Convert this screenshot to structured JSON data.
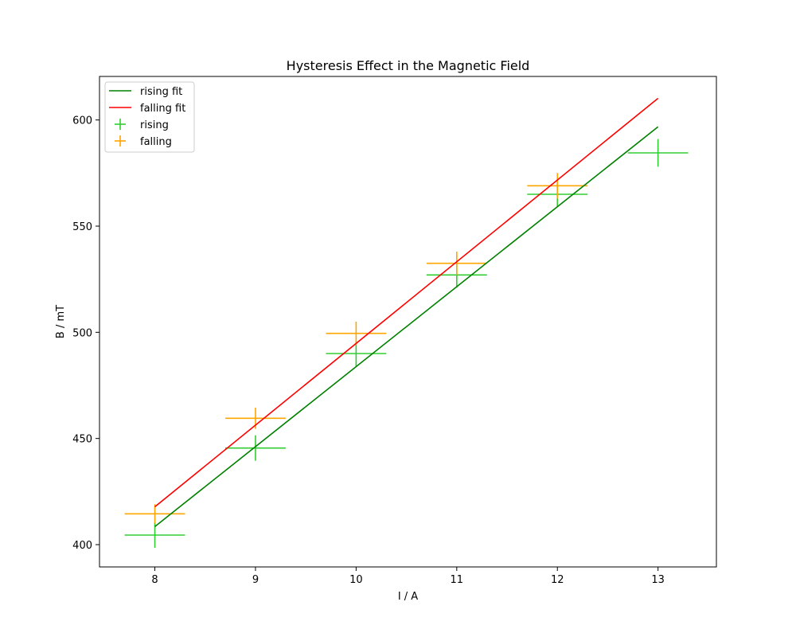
{
  "chart_data": {
    "type": "scatter",
    "title": "Hysteresis Effect in the Magnetic Field",
    "xlabel": "I / A",
    "ylabel": "B / mT",
    "xlim": [
      7.45,
      13.58
    ],
    "ylim": [
      389.5,
      620.5
    ],
    "x_ticks": [
      8,
      9,
      10,
      11,
      12,
      13
    ],
    "y_ticks": [
      400,
      450,
      500,
      550,
      600
    ],
    "grid": false,
    "legend_position": "upper left",
    "fits": [
      {
        "name": "rising fit",
        "color": "#008000",
        "x": [
          8,
          13
        ],
        "y": [
          408.5,
          596.8
        ]
      },
      {
        "name": "falling fit",
        "color": "#ff0000",
        "x": [
          8,
          13
        ],
        "y": [
          417.8,
          610.2
        ]
      }
    ],
    "series": [
      {
        "name": "rising",
        "color": "#32cd32",
        "points": [
          {
            "x": 8,
            "y": 404.5,
            "xerr": 0.3,
            "yerr": 6
          },
          {
            "x": 9,
            "y": 445.5,
            "xerr": 0.3,
            "yerr": 6
          },
          {
            "x": 10,
            "y": 490.0,
            "xerr": 0.3,
            "yerr": 6
          },
          {
            "x": 11,
            "y": 527.0,
            "xerr": 0.3,
            "yerr": 6
          },
          {
            "x": 12,
            "y": 565.0,
            "xerr": 0.3,
            "yerr": 6
          },
          {
            "x": 13,
            "y": 584.5,
            "xerr": 0.3,
            "yerr": 6.5
          }
        ]
      },
      {
        "name": "falling",
        "color": "#ffa500",
        "points": [
          {
            "x": 8,
            "y": 414.5,
            "xerr": 0.3,
            "yerr": 4.5
          },
          {
            "x": 9,
            "y": 459.5,
            "xerr": 0.3,
            "yerr": 5
          },
          {
            "x": 10,
            "y": 499.5,
            "xerr": 0.3,
            "yerr": 5.5
          },
          {
            "x": 11,
            "y": 532.5,
            "xerr": 0.3,
            "yerr": 5.5
          },
          {
            "x": 12,
            "y": 569.0,
            "xerr": 0.3,
            "yerr": 6
          }
        ]
      }
    ]
  }
}
